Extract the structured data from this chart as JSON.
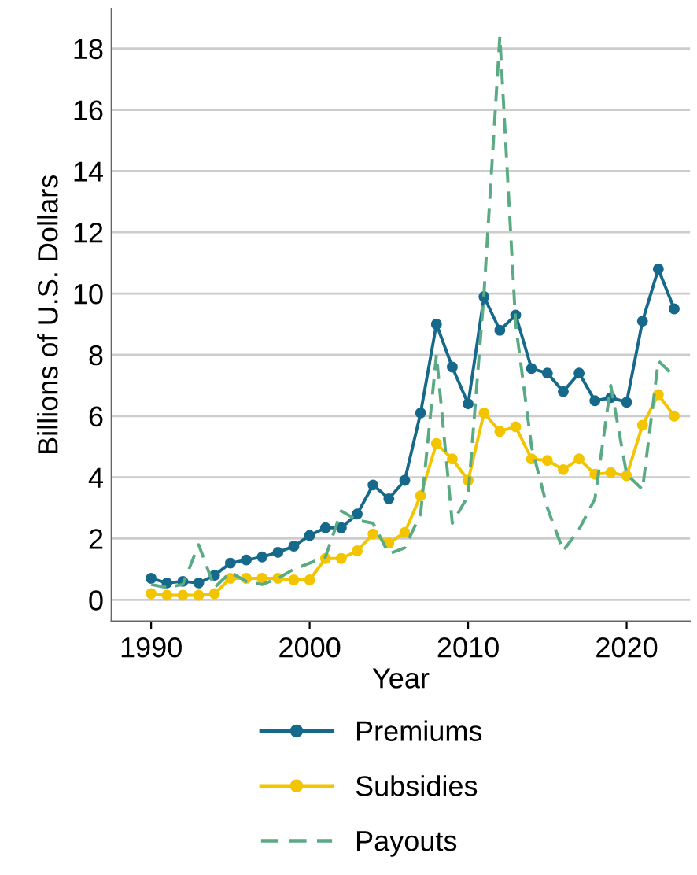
{
  "chart_data": {
    "type": "line",
    "xlabel": "Year",
    "ylabel": "Billions of U.S. Dollars",
    "x": [
      1990,
      1991,
      1992,
      1993,
      1994,
      1995,
      1996,
      1997,
      1998,
      1999,
      2000,
      2001,
      2002,
      2003,
      2004,
      2005,
      2006,
      2007,
      2008,
      2009,
      2010,
      2011,
      2012,
      2013,
      2014,
      2015,
      2016,
      2017,
      2018,
      2019,
      2020,
      2021,
      2022,
      2023
    ],
    "xlim": [
      1987.5,
      2024
    ],
    "xticks": [
      1990,
      2000,
      2010,
      2020
    ],
    "ylim": [
      -0.7,
      19.3
    ],
    "yticks": [
      0,
      2,
      4,
      6,
      8,
      10,
      12,
      14,
      16,
      18
    ],
    "grid": "y",
    "legend": "bottom",
    "series": [
      {
        "name": "Premiums",
        "color": "#16698a",
        "marker": "circle",
        "line_style": "solid",
        "values": [
          0.7,
          0.55,
          0.6,
          0.55,
          0.8,
          1.2,
          1.3,
          1.4,
          1.55,
          1.75,
          2.1,
          2.35,
          2.35,
          2.8,
          3.75,
          3.3,
          3.9,
          6.1,
          9.0,
          7.6,
          6.4,
          9.9,
          8.8,
          9.3,
          7.55,
          7.4,
          6.8,
          7.4,
          6.5,
          6.6,
          6.45,
          9.1,
          10.8,
          9.5
        ]
      },
      {
        "name": "Subsidies",
        "color": "#f2c500",
        "marker": "circle",
        "line_style": "solid",
        "values": [
          0.2,
          0.15,
          0.15,
          0.15,
          0.2,
          0.7,
          0.7,
          0.7,
          0.7,
          0.65,
          0.65,
          1.35,
          1.35,
          1.6,
          2.15,
          1.85,
          2.2,
          3.4,
          5.1,
          4.6,
          3.9,
          6.1,
          5.5,
          5.65,
          4.6,
          4.55,
          4.25,
          4.6,
          4.1,
          4.15,
          4.05,
          5.7,
          6.7,
          6.0
        ]
      },
      {
        "name": "Payouts",
        "color": "#5aaa84",
        "marker": "none",
        "line_style": "dashed",
        "values": [
          0.5,
          0.4,
          0.5,
          1.8,
          0.4,
          0.9,
          0.6,
          0.5,
          0.7,
          1.0,
          1.2,
          1.4,
          2.9,
          2.6,
          2.5,
          1.5,
          1.7,
          2.8,
          8.0,
          2.5,
          3.4,
          10.0,
          18.4,
          9.0,
          5.0,
          3.0,
          1.6,
          2.3,
          3.3,
          7.0,
          4.1,
          3.6,
          7.8,
          7.3
        ]
      }
    ]
  }
}
